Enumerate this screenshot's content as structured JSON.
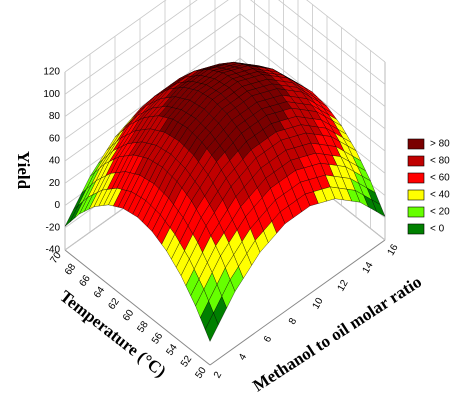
{
  "chart_data": {
    "type": "surface",
    "xlabel": "Methanol to oil molar ratio",
    "ylabel": "Temperature (°C)",
    "zlabel": "Yield",
    "x": [
      2,
      4,
      6,
      8,
      10,
      12,
      14,
      16
    ],
    "y": [
      50,
      52,
      54,
      56,
      58,
      60,
      62,
      64,
      66,
      68,
      70
    ],
    "values": [
      [
        -18.8,
        10,
        29.2,
        38.8,
        38.8,
        29.2,
        10,
        -18.8
      ],
      [
        2.8,
        31.6,
        50.8,
        60.4,
        60.4,
        50.8,
        31.6,
        2.8
      ],
      [
        19.6,
        48.4,
        67.6,
        77.2,
        77.2,
        67.6,
        48.4,
        19.6
      ],
      [
        31.6,
        60.4,
        79.6,
        89.2,
        89.2,
        79.6,
        60.4,
        31.6
      ],
      [
        38.8,
        67.6,
        86.8,
        96.4,
        96.4,
        86.8,
        67.6,
        38.8
      ],
      [
        41.2,
        70,
        89.2,
        98.8,
        98.8,
        89.2,
        70,
        41.2
      ],
      [
        38.8,
        67.6,
        86.8,
        96.4,
        96.4,
        86.8,
        67.6,
        38.8
      ],
      [
        31.6,
        60.4,
        79.6,
        89.2,
        89.2,
        79.6,
        60.4,
        31.6
      ],
      [
        19.6,
        48.4,
        67.6,
        77.2,
        77.2,
        67.6,
        48.4,
        19.6
      ],
      [
        2.8,
        31.6,
        50.8,
        60.4,
        60.4,
        50.8,
        31.6,
        2.8
      ],
      [
        -18.8,
        10,
        29.2,
        38.8,
        38.8,
        29.2,
        10,
        -18.8
      ]
    ],
    "xlim": [
      2,
      16
    ],
    "ylim": [
      50,
      70
    ],
    "zlim": [
      -40,
      120
    ],
    "xticks": [
      2,
      4,
      6,
      8,
      10,
      12,
      14,
      16
    ],
    "yticks": [
      50,
      52,
      54,
      56,
      58,
      60,
      62,
      64,
      66,
      68,
      70
    ],
    "zticks": [
      -40,
      -20,
      0,
      20,
      40,
      60,
      80,
      100,
      120
    ],
    "grid": true,
    "legend_position": "right",
    "levels": [
      {
        "value": 80,
        "label": "> 80",
        "color": "#7a0000"
      },
      {
        "value": 80,
        "label": "< 80",
        "color": "#c00000"
      },
      {
        "value": 60,
        "label": "< 60",
        "color": "#ff0000"
      },
      {
        "value": 40,
        "label": "< 40",
        "color": "#ffff00"
      },
      {
        "value": 20,
        "label": "< 20",
        "color": "#66ff00"
      },
      {
        "value": 0,
        "label": "< 0",
        "color": "#008000"
      }
    ]
  }
}
